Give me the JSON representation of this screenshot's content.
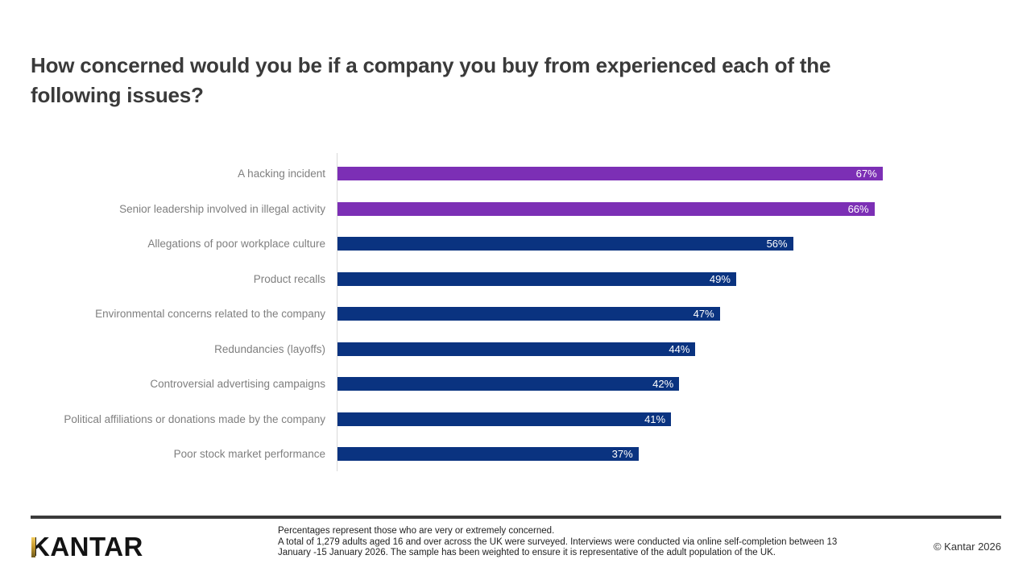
{
  "title": {
    "line1": "How concerned would you be if a company you buy from experienced each of the",
    "line2": "following issues?"
  },
  "chart_data": {
    "type": "bar",
    "orientation": "horizontal",
    "title": "How concerned would you be if a company you buy from experienced each of the following issues?",
    "categories": [
      "A hacking incident",
      "Senior leadership involved in illegal activity",
      "Allegations of poor workplace culture",
      "Product recalls",
      "Environmental concerns related to the company",
      "Redundancies (layoffs)",
      "Controversial advertising campaigns",
      "Political affiliations or donations made by the company",
      "Poor stock market performance"
    ],
    "values": [
      67,
      66,
      56,
      49,
      47,
      44,
      42,
      41,
      37
    ],
    "value_labels": [
      "67%",
      "66%",
      "56%",
      "49%",
      "47%",
      "44%",
      "42%",
      "41%",
      "37%"
    ],
    "bar_colors": [
      "#7c2fb5",
      "#7c2fb5",
      "#0a3380",
      "#0a3380",
      "#0a3380",
      "#0a3380",
      "#0a3380",
      "#0a3380",
      "#0a3380"
    ],
    "highlight_color": "#7c2fb5",
    "base_color": "#0a3380",
    "axis_color": "#d9d9d9",
    "label_color": "#7f7f7f",
    "xlim": [
      0,
      80
    ],
    "grid": false,
    "legend": false
  },
  "footer": {
    "logo_text": "KANTAR",
    "footnote_line1": "Percentages represent those who are very or extremely concerned.",
    "footnote_line2": "A total of 1,279 adults aged 16 and over across the UK were surveyed. Interviews were conducted via online self-completion between 13 January -15 January 2026. The sample has been weighted to ensure it is representative of the adult population of the UK.",
    "copyright": "© Kantar 2026"
  }
}
